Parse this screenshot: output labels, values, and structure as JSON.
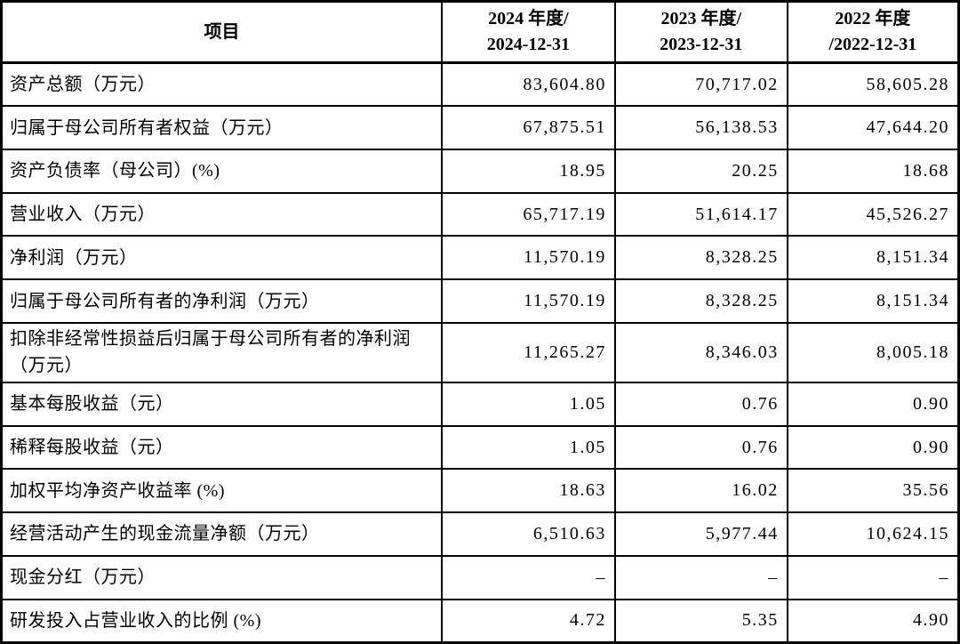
{
  "table": {
    "header": {
      "item": "项目",
      "y2024_line1": "2024 年度/",
      "y2024_line2": "2024-12-31",
      "y2023_line1": "2023 年度/",
      "y2023_line2": "2023-12-31",
      "y2022_line1": "2022 年度",
      "y2022_line2": "/2022-12-31"
    },
    "rows": [
      {
        "item": "资产总额（万元）",
        "v2024": "83,604.80",
        "v2023": "70,717.02",
        "v2022": "58,605.28"
      },
      {
        "item": "归属于母公司所有者权益（万元）",
        "v2024": "67,875.51",
        "v2023": "56,138.53",
        "v2022": "47,644.20"
      },
      {
        "item": "资产负债率（母公司）(%)",
        "v2024": "18.95",
        "v2023": "20.25",
        "v2022": "18.68"
      },
      {
        "item": "营业收入（万元）",
        "v2024": "65,717.19",
        "v2023": "51,614.17",
        "v2022": "45,526.27"
      },
      {
        "item": "净利润（万元）",
        "v2024": "11,570.19",
        "v2023": "8,328.25",
        "v2022": "8,151.34"
      },
      {
        "item": "归属于母公司所有者的净利润（万元）",
        "v2024": "11,570.19",
        "v2023": "8,328.25",
        "v2022": "8,151.34"
      },
      {
        "item": "扣除非经常性损益后归属于母公司所有者的净利润（万元）",
        "v2024": "11,265.27",
        "v2023": "8,346.03",
        "v2022": "8,005.18"
      },
      {
        "item": "基本每股收益（元）",
        "v2024": "1.05",
        "v2023": "0.76",
        "v2022": "0.90"
      },
      {
        "item": "稀释每股收益（元）",
        "v2024": "1.05",
        "v2023": "0.76",
        "v2022": "0.90"
      },
      {
        "item": "加权平均净资产收益率 (%)",
        "v2024": "18.63",
        "v2023": "16.02",
        "v2022": "35.56"
      },
      {
        "item": "经营活动产生的现金流量净额（万元）",
        "v2024": "6,510.63",
        "v2023": "5,977.44",
        "v2022": "10,624.15"
      },
      {
        "item": "现金分红（万元）",
        "v2024": "–",
        "v2023": "–",
        "v2022": "–"
      },
      {
        "item": "研发投入占营业收入的比例 (%)",
        "v2024": "4.72",
        "v2023": "5.35",
        "v2022": "4.90"
      }
    ]
  }
}
